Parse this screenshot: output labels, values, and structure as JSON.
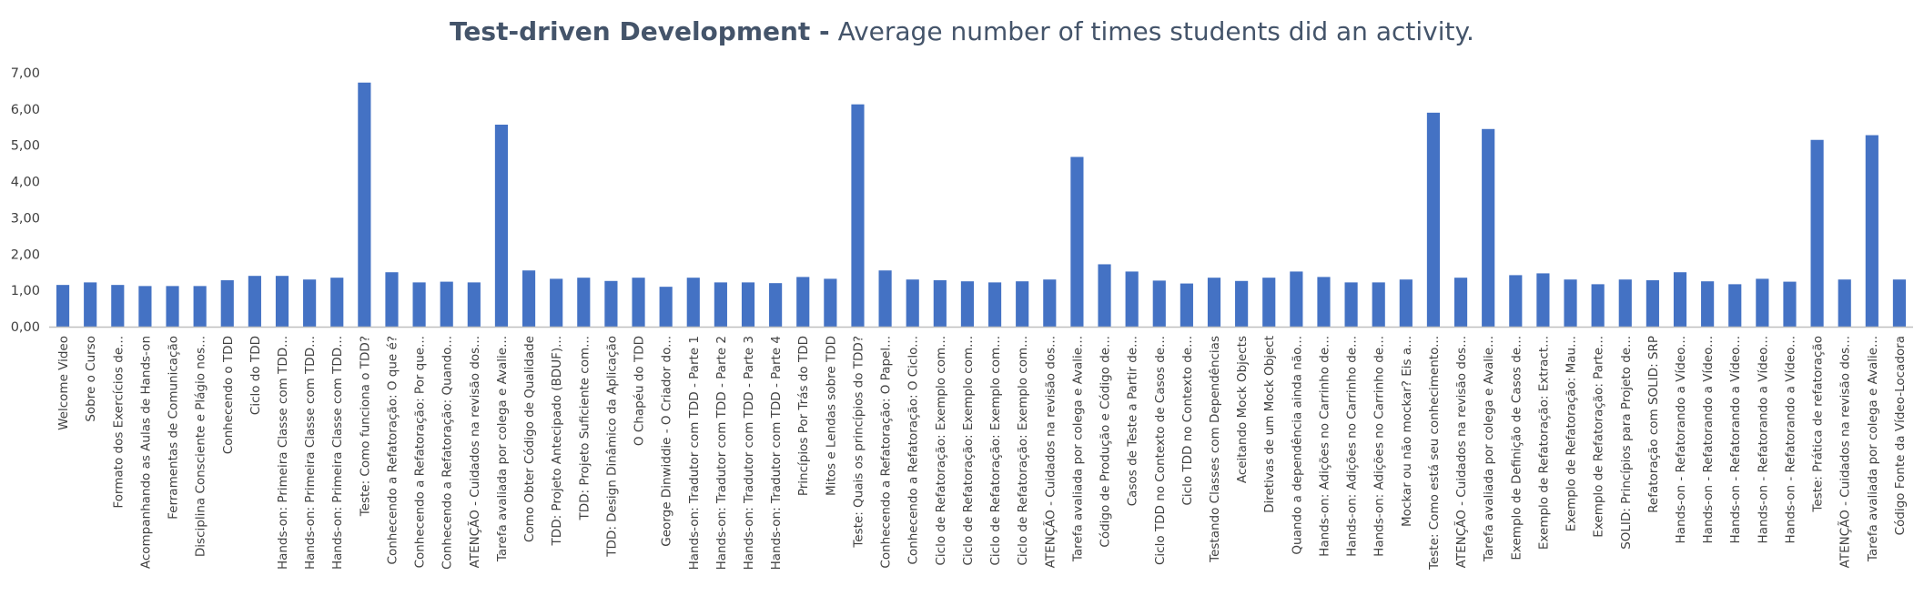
{
  "chart_data": {
    "type": "bar",
    "title_bold": "Test-driven Development -",
    "title_rest": " Average number of times students did an activity.",
    "xlabel": "",
    "ylabel": "",
    "ylim": [
      0,
      7
    ],
    "y_ticks": [
      "0,00",
      "1,00",
      "2,00",
      "3,00",
      "4,00",
      "5,00",
      "6,00",
      "7,00"
    ],
    "grid": false,
    "bar_color": "#4472C4",
    "axis_color": "#bfbfbf",
    "categories": [
      "Welcome Video",
      "Sobre o Curso",
      "Formato dos Exercícios de...",
      "Acompanhando as Aulas de Hands-on",
      "Ferramentas de Comunicação",
      "Disciplina Consciente e Plágio nos...",
      "Conhecendo o TDD",
      "Ciclo do TDD",
      "Hands-on: Primeira Classe com TDD...",
      "Hands-on: Primeira Classe com TDD...",
      "Hands-on: Primeira Classe com TDD...",
      "Teste: Como funciona o TDD?",
      "Conhecendo a Refatoração: O que é?",
      "Conhecendo a Refatoração: Por que...",
      "Conhecendo a Refatoração: Quando...",
      "ATENÇÃO - Cuidados na revisão dos...",
      "Tarefa avaliada por colega e Avalie...",
      "Como Obter Código de Qualidade",
      "TDD: Projeto Antecipado (BDUF)...",
      "TDD: Projeto Suficiente com...",
      "TDD: Design Dinâmico da Aplicação",
      "O Chapéu do TDD",
      "George Dinwiddie - O Criador do...",
      "Hands-on: Tradutor com TDD - Parte 1",
      "Hands-on: Tradutor com TDD - Parte 2",
      "Hands-on: Tradutor com TDD - Parte 3",
      "Hands-on: Tradutor com TDD - Parte 4",
      "Princípios Por Trás do TDD",
      "Mitos e Lendas sobre TDD",
      "Teste: Quais os princípios do TDD?",
      "Conhecendo a Refatoração: O Papel...",
      "Conhecendo a Refatoração: O Ciclo...",
      "Ciclo de Refatoração: Exemplo com...",
      "Ciclo de Refatoração: Exemplo com...",
      "Ciclo de Refatoração: Exemplo com...",
      "Ciclo de Refatoração: Exemplo com...",
      "ATENÇÃO - Cuidados na revisão dos...",
      "Tarefa avaliada por colega e Avalie...",
      "Código de Produção e Código de...",
      "Casos de Teste a Partir de...",
      "Ciclo TDD no Contexto de Casos de...",
      "Ciclo TDD no Contexto de...",
      "Testando Classes com Dependências",
      "Aceitando Mock Objects",
      "Diretivas de um Mock Object",
      "Quando a dependência ainda não...",
      "Hands-on: Adições no Carrinho de...",
      "Hands-on: Adições no Carrinho de...",
      "Hands-on: Adições no Carrinho de...",
      "Mockar ou não mockar? Eis a...",
      "Teste: Como está seu conhecimento...",
      "ATENÇÃO - Cuidados na revisão dos...",
      "Tarefa avaliada por colega e Avalie...",
      "Exemplo de Definição de Casos de...",
      "Exemplo de Refatoração: Extract...",
      "Exemplo de Refatoração: Mau...",
      "Exemplo de Refatoração: Parte...",
      "SOLID: Princípios para Projeto de...",
      "Refatoração com SOLID: SRP",
      "Hands-on - Refatorando a Vídeo...",
      "Hands-on - Refatorando a Vídeo...",
      "Hands-on - Refatorando a Vídeo...",
      "Hands-on - Refatorando a Vídeo...",
      "Hands-on - Refatorando a Vídeo...",
      "Teste: Prática de refatoração",
      "ATENÇÃO - Cuidados na revisão dos...",
      "Tarefa avaliada por colega e Avalie...",
      "Código Fonte da Vídeo-Locadora"
    ],
    "values": [
      1.15,
      1.22,
      1.15,
      1.12,
      1.12,
      1.12,
      1.28,
      1.4,
      1.4,
      1.3,
      1.35,
      6.73,
      1.5,
      1.22,
      1.24,
      1.22,
      5.57,
      1.55,
      1.32,
      1.35,
      1.26,
      1.35,
      1.1,
      1.35,
      1.22,
      1.22,
      1.2,
      1.37,
      1.32,
      6.13,
      1.55,
      1.3,
      1.28,
      1.25,
      1.22,
      1.25,
      1.3,
      4.68,
      1.72,
      1.52,
      1.27,
      1.19,
      1.35,
      1.26,
      1.35,
      1.52,
      1.37,
      1.22,
      1.22,
      1.3,
      5.9,
      1.35,
      5.45,
      1.42,
      1.47,
      1.3,
      1.17,
      1.3,
      1.28,
      1.5,
      1.25,
      1.17,
      1.32,
      1.24,
      5.15,
      1.3,
      5.28,
      1.3
    ]
  }
}
